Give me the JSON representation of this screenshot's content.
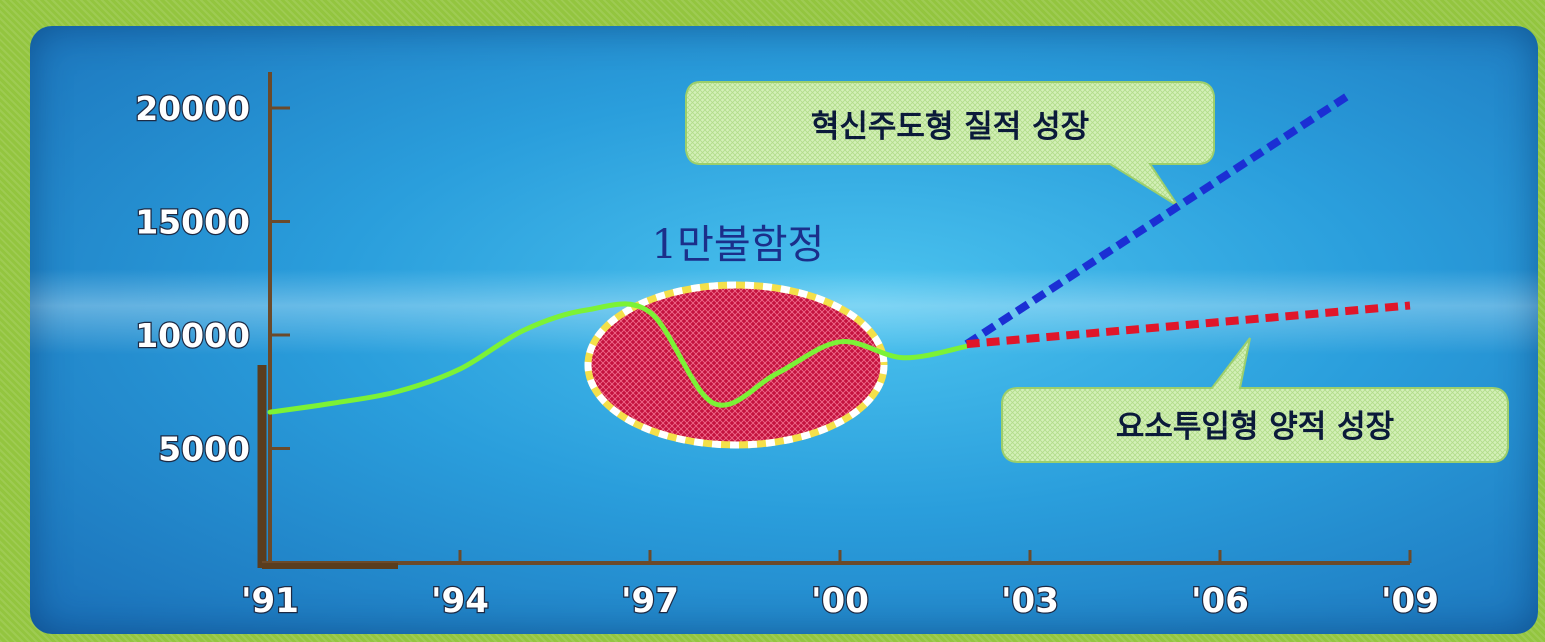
{
  "chart_data": {
    "type": "line",
    "x": [
      "'91",
      "'92",
      "'93",
      "'94",
      "'95",
      "'96",
      "'97",
      "'98",
      "'99",
      "'00",
      "'01",
      "'02"
    ],
    "x_ticks": [
      "'91",
      "'94",
      "'97",
      "'00",
      "'03",
      "'06",
      "'09"
    ],
    "y_ticks": [
      5000,
      10000,
      15000,
      20000
    ],
    "ylim": [
      0,
      22000
    ],
    "xlim": [
      1991,
      2009
    ],
    "grid": false,
    "series": [
      {
        "values": [
          6600,
          7000,
          7500,
          8500,
          10200,
          11100,
          11000,
          7000,
          8300,
          9700,
          9000,
          9500
        ],
        "color": "#7cf236",
        "style": "solid"
      },
      {
        "x": [
          "'02",
          "'08"
        ],
        "values": [
          9600,
          20500
        ],
        "color": "#1b2fd4",
        "style": "dashed"
      },
      {
        "x": [
          "'02",
          "'09"
        ],
        "values": [
          9600,
          11300
        ],
        "color": "#e0162a",
        "style": "dashed"
      }
    ],
    "annotations": {
      "trap": "1만불함정",
      "upper": "혁신주도형 질적 성장",
      "lower": "요소투입형 양적 성장"
    }
  }
}
